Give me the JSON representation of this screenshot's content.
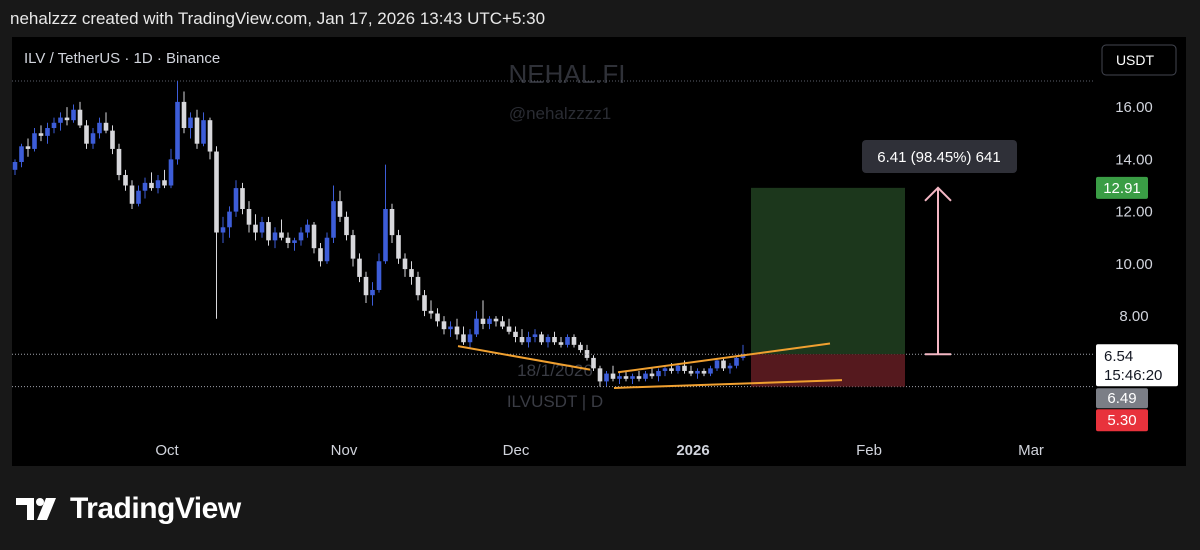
{
  "header": "nehalzzz created with TradingView.com, Jan 17, 2026 13:43 UTC+5:30",
  "footer": {
    "logo_text": "TradingView"
  },
  "chart_data": {
    "type": "candlestick",
    "title": "ILV / TetherUS · 1D · Binance",
    "currency_button": "USDT",
    "watermark": {
      "name": "NEHAL.FI",
      "handle": "@nehalzzzz1",
      "date": "18/1/2026",
      "symbol": "ILVUSDT | D"
    },
    "y_axis": {
      "ticks": [
        "16.00",
        "14.00",
        "12.00",
        "10.00",
        "8.00"
      ],
      "range": [
        4.75,
        17.0
      ]
    },
    "x_axis": {
      "ticks": [
        "Oct",
        "Nov",
        "Dec",
        "2026",
        "Feb",
        "Mar"
      ],
      "bold_tick": "2026"
    },
    "price_labels": {
      "target": "12.91",
      "current": "6.54",
      "countdown": "15:46:20",
      "prev": "6.49",
      "stop": "5.30"
    },
    "measure_label": "6.41 (98.45%) 641",
    "position": {
      "entry": 6.54,
      "target": 12.91,
      "stop": 5.3
    },
    "candles": [
      {
        "o": 13.6,
        "h": 14.0,
        "l": 13.4,
        "c": 13.9
      },
      {
        "o": 13.9,
        "h": 14.6,
        "l": 13.7,
        "c": 14.5
      },
      {
        "o": 14.5,
        "h": 14.8,
        "l": 14.1,
        "c": 14.4
      },
      {
        "o": 14.4,
        "h": 15.2,
        "l": 14.3,
        "c": 15.0
      },
      {
        "o": 15.0,
        "h": 15.3,
        "l": 14.7,
        "c": 14.9
      },
      {
        "o": 14.9,
        "h": 15.4,
        "l": 14.6,
        "c": 15.2
      },
      {
        "o": 15.2,
        "h": 15.6,
        "l": 15.0,
        "c": 15.4
      },
      {
        "o": 15.4,
        "h": 15.8,
        "l": 15.1,
        "c": 15.6
      },
      {
        "o": 15.6,
        "h": 16.0,
        "l": 15.3,
        "c": 15.5
      },
      {
        "o": 15.5,
        "h": 16.1,
        "l": 15.4,
        "c": 15.9
      },
      {
        "o": 15.9,
        "h": 16.2,
        "l": 15.2,
        "c": 15.3
      },
      {
        "o": 15.3,
        "h": 15.5,
        "l": 14.4,
        "c": 14.6
      },
      {
        "o": 14.6,
        "h": 15.2,
        "l": 14.4,
        "c": 15.0
      },
      {
        "o": 15.0,
        "h": 15.6,
        "l": 14.8,
        "c": 15.4
      },
      {
        "o": 15.4,
        "h": 15.8,
        "l": 15.0,
        "c": 15.1
      },
      {
        "o": 15.1,
        "h": 15.3,
        "l": 14.2,
        "c": 14.4
      },
      {
        "o": 14.4,
        "h": 14.6,
        "l": 13.2,
        "c": 13.4
      },
      {
        "o": 13.4,
        "h": 13.6,
        "l": 12.8,
        "c": 13.0
      },
      {
        "o": 13.0,
        "h": 13.2,
        "l": 12.1,
        "c": 12.3
      },
      {
        "o": 12.3,
        "h": 13.0,
        "l": 12.2,
        "c": 12.8
      },
      {
        "o": 12.8,
        "h": 13.3,
        "l": 12.5,
        "c": 13.1
      },
      {
        "o": 13.1,
        "h": 13.5,
        "l": 12.8,
        "c": 12.9
      },
      {
        "o": 12.9,
        "h": 13.4,
        "l": 12.7,
        "c": 13.2
      },
      {
        "o": 13.2,
        "h": 13.6,
        "l": 12.9,
        "c": 13.0
      },
      {
        "o": 13.0,
        "h": 14.4,
        "l": 12.9,
        "c": 14.0
      },
      {
        "o": 14.0,
        "h": 17.0,
        "l": 13.8,
        "c": 16.2
      },
      {
        "o": 16.2,
        "h": 16.6,
        "l": 15.0,
        "c": 15.2
      },
      {
        "o": 15.2,
        "h": 15.8,
        "l": 14.8,
        "c": 15.6
      },
      {
        "o": 15.6,
        "h": 15.9,
        "l": 14.4,
        "c": 14.6
      },
      {
        "o": 14.6,
        "h": 15.8,
        "l": 14.5,
        "c": 15.5
      },
      {
        "o": 15.5,
        "h": 15.6,
        "l": 14.0,
        "c": 14.3
      },
      {
        "o": 14.3,
        "h": 14.5,
        "l": 7.9,
        "c": 11.2
      },
      {
        "o": 11.2,
        "h": 11.8,
        "l": 10.8,
        "c": 11.4
      },
      {
        "o": 11.4,
        "h": 12.2,
        "l": 11.0,
        "c": 12.0
      },
      {
        "o": 12.0,
        "h": 13.2,
        "l": 11.8,
        "c": 12.9
      },
      {
        "o": 12.9,
        "h": 13.1,
        "l": 11.9,
        "c": 12.1
      },
      {
        "o": 12.1,
        "h": 12.4,
        "l": 11.2,
        "c": 11.5
      },
      {
        "o": 11.5,
        "h": 11.9,
        "l": 10.9,
        "c": 11.2
      },
      {
        "o": 11.2,
        "h": 11.8,
        "l": 11.0,
        "c": 11.6
      },
      {
        "o": 11.6,
        "h": 11.8,
        "l": 10.7,
        "c": 10.9
      },
      {
        "o": 10.9,
        "h": 11.4,
        "l": 10.6,
        "c": 11.2
      },
      {
        "o": 11.2,
        "h": 11.7,
        "l": 10.9,
        "c": 11.0
      },
      {
        "o": 11.0,
        "h": 11.2,
        "l": 10.6,
        "c": 10.8
      },
      {
        "o": 10.8,
        "h": 11.0,
        "l": 10.5,
        "c": 10.9
      },
      {
        "o": 10.9,
        "h": 11.4,
        "l": 10.7,
        "c": 11.2
      },
      {
        "o": 11.2,
        "h": 11.7,
        "l": 11.0,
        "c": 11.5
      },
      {
        "o": 11.5,
        "h": 11.6,
        "l": 10.4,
        "c": 10.6
      },
      {
        "o": 10.6,
        "h": 10.8,
        "l": 9.9,
        "c": 10.1
      },
      {
        "o": 10.1,
        "h": 11.2,
        "l": 10.0,
        "c": 11.0
      },
      {
        "o": 11.0,
        "h": 13.0,
        "l": 10.8,
        "c": 12.4
      },
      {
        "o": 12.4,
        "h": 12.8,
        "l": 11.6,
        "c": 11.8
      },
      {
        "o": 11.8,
        "h": 12.0,
        "l": 10.9,
        "c": 11.1
      },
      {
        "o": 11.1,
        "h": 11.3,
        "l": 9.9,
        "c": 10.2
      },
      {
        "o": 10.2,
        "h": 10.4,
        "l": 9.3,
        "c": 9.5
      },
      {
        "o": 9.5,
        "h": 9.7,
        "l": 8.5,
        "c": 8.8
      },
      {
        "o": 8.8,
        "h": 9.3,
        "l": 8.4,
        "c": 9.0
      },
      {
        "o": 9.0,
        "h": 10.4,
        "l": 8.9,
        "c": 10.1
      },
      {
        "o": 10.1,
        "h": 13.8,
        "l": 10.0,
        "c": 12.1
      },
      {
        "o": 12.1,
        "h": 12.3,
        "l": 10.8,
        "c": 11.1
      },
      {
        "o": 11.1,
        "h": 11.3,
        "l": 10.0,
        "c": 10.2
      },
      {
        "o": 10.2,
        "h": 10.4,
        "l": 9.5,
        "c": 9.8
      },
      {
        "o": 9.8,
        "h": 10.1,
        "l": 9.2,
        "c": 9.5
      },
      {
        "o": 9.5,
        "h": 9.7,
        "l": 8.6,
        "c": 8.8
      },
      {
        "o": 8.8,
        "h": 9.0,
        "l": 8.0,
        "c": 8.2
      },
      {
        "o": 8.2,
        "h": 8.6,
        "l": 7.9,
        "c": 8.1
      },
      {
        "o": 8.1,
        "h": 8.3,
        "l": 7.6,
        "c": 7.8
      },
      {
        "o": 7.8,
        "h": 8.0,
        "l": 7.3,
        "c": 7.5
      },
      {
        "o": 7.5,
        "h": 7.8,
        "l": 7.2,
        "c": 7.6
      },
      {
        "o": 7.6,
        "h": 7.9,
        "l": 7.1,
        "c": 7.3
      },
      {
        "o": 7.3,
        "h": 7.6,
        "l": 6.9,
        "c": 7.0
      },
      {
        "o": 7.0,
        "h": 7.5,
        "l": 6.8,
        "c": 7.3
      },
      {
        "o": 7.3,
        "h": 8.2,
        "l": 7.2,
        "c": 7.9
      },
      {
        "o": 7.9,
        "h": 8.6,
        "l": 7.5,
        "c": 7.7
      },
      {
        "o": 7.7,
        "h": 8.0,
        "l": 7.5,
        "c": 7.9
      },
      {
        "o": 7.9,
        "h": 8.0,
        "l": 7.6,
        "c": 7.8
      },
      {
        "o": 7.8,
        "h": 8.0,
        "l": 7.5,
        "c": 7.6
      },
      {
        "o": 7.6,
        "h": 7.9,
        "l": 7.3,
        "c": 7.4
      },
      {
        "o": 7.4,
        "h": 7.6,
        "l": 7.0,
        "c": 7.2
      },
      {
        "o": 7.2,
        "h": 7.5,
        "l": 6.9,
        "c": 7.0
      },
      {
        "o": 7.0,
        "h": 7.4,
        "l": 6.8,
        "c": 7.2
      },
      {
        "o": 7.2,
        "h": 7.5,
        "l": 7.0,
        "c": 7.3
      },
      {
        "o": 7.3,
        "h": 7.4,
        "l": 6.9,
        "c": 7.0
      },
      {
        "o": 7.0,
        "h": 7.3,
        "l": 6.8,
        "c": 7.2
      },
      {
        "o": 7.2,
        "h": 7.4,
        "l": 6.9,
        "c": 7.0
      },
      {
        "o": 7.0,
        "h": 7.2,
        "l": 6.8,
        "c": 6.9
      },
      {
        "o": 6.9,
        "h": 7.3,
        "l": 6.8,
        "c": 7.2
      },
      {
        "o": 7.2,
        "h": 7.3,
        "l": 6.8,
        "c": 6.9
      },
      {
        "o": 6.9,
        "h": 7.0,
        "l": 6.6,
        "c": 6.7
      },
      {
        "o": 6.7,
        "h": 6.9,
        "l": 6.3,
        "c": 6.4
      },
      {
        "o": 6.4,
        "h": 6.5,
        "l": 5.9,
        "c": 6.0
      },
      {
        "o": 6.0,
        "h": 6.1,
        "l": 5.3,
        "c": 5.5
      },
      {
        "o": 5.5,
        "h": 5.9,
        "l": 5.3,
        "c": 5.8
      },
      {
        "o": 5.8,
        "h": 6.1,
        "l": 5.5,
        "c": 5.6
      },
      {
        "o": 5.6,
        "h": 5.9,
        "l": 5.4,
        "c": 5.7
      },
      {
        "o": 5.7,
        "h": 5.9,
        "l": 5.5,
        "c": 5.6
      },
      {
        "o": 5.6,
        "h": 5.8,
        "l": 5.4,
        "c": 5.7
      },
      {
        "o": 5.7,
        "h": 5.9,
        "l": 5.5,
        "c": 5.6
      },
      {
        "o": 5.6,
        "h": 5.9,
        "l": 5.5,
        "c": 5.8
      },
      {
        "o": 5.8,
        "h": 6.0,
        "l": 5.6,
        "c": 5.7
      },
      {
        "o": 5.7,
        "h": 6.0,
        "l": 5.5,
        "c": 5.9
      },
      {
        "o": 5.9,
        "h": 6.1,
        "l": 5.7,
        "c": 6.0
      },
      {
        "o": 6.0,
        "h": 6.2,
        "l": 5.8,
        "c": 5.9
      },
      {
        "o": 5.9,
        "h": 6.2,
        "l": 5.8,
        "c": 6.1
      },
      {
        "o": 6.1,
        "h": 6.3,
        "l": 5.8,
        "c": 5.9
      },
      {
        "o": 5.9,
        "h": 6.1,
        "l": 5.7,
        "c": 5.8
      },
      {
        "o": 5.8,
        "h": 6.0,
        "l": 5.6,
        "c": 5.9
      },
      {
        "o": 5.9,
        "h": 6.0,
        "l": 5.7,
        "c": 5.8
      },
      {
        "o": 5.8,
        "h": 6.1,
        "l": 5.7,
        "c": 6.0
      },
      {
        "o": 6.0,
        "h": 6.4,
        "l": 5.9,
        "c": 6.3
      },
      {
        "o": 6.3,
        "h": 6.4,
        "l": 5.9,
        "c": 6.0
      },
      {
        "o": 6.0,
        "h": 6.2,
        "l": 5.8,
        "c": 6.1
      },
      {
        "o": 6.1,
        "h": 6.5,
        "l": 6.0,
        "c": 6.4
      },
      {
        "o": 6.4,
        "h": 6.9,
        "l": 6.3,
        "c": 6.54
      }
    ]
  }
}
